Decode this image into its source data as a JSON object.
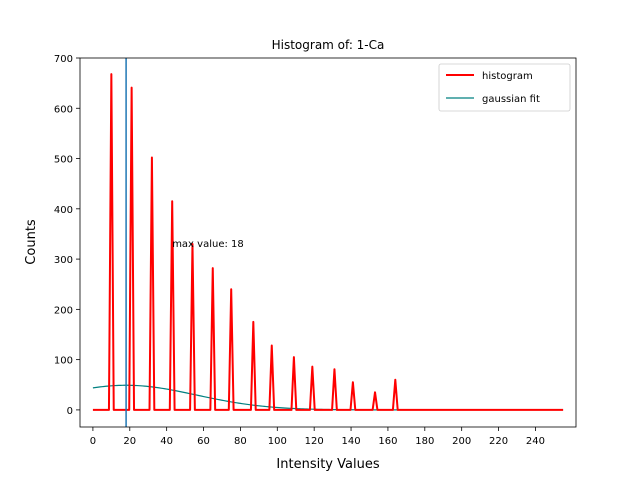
{
  "chart_data": {
    "type": "line",
    "title": "Histogram of: 1-Ca",
    "xlabel": "Intensity Values",
    "ylabel": "Counts",
    "xlim": [
      -7,
      262
    ],
    "ylim": [
      -34,
      700
    ],
    "xticks": [
      0,
      20,
      40,
      60,
      80,
      100,
      120,
      140,
      160,
      180,
      200,
      220,
      240
    ],
    "yticks": [
      0,
      100,
      200,
      300,
      400,
      500,
      600,
      700
    ],
    "grid": false,
    "legend_position": "top-right",
    "series": [
      {
        "name": "histogram",
        "color": "#ff0000",
        "style": "spikes",
        "peaks": [
          {
            "x": 10,
            "y": 668
          },
          {
            "x": 21,
            "y": 641
          },
          {
            "x": 32,
            "y": 502
          },
          {
            "x": 43,
            "y": 415
          },
          {
            "x": 54,
            "y": 330
          },
          {
            "x": 65,
            "y": 282
          },
          {
            "x": 75,
            "y": 240
          },
          {
            "x": 87,
            "y": 175
          },
          {
            "x": 97,
            "y": 128
          },
          {
            "x": 109,
            "y": 105
          },
          {
            "x": 119,
            "y": 86
          },
          {
            "x": 131,
            "y": 81
          },
          {
            "x": 141,
            "y": 55
          },
          {
            "x": 153,
            "y": 35
          },
          {
            "x": 164,
            "y": 60
          }
        ],
        "x_range": [
          0,
          255
        ]
      },
      {
        "name": "gaussian fit",
        "color": "#008080",
        "style": "curve",
        "amplitude": 49,
        "mean": 18,
        "sigma": 38,
        "x_range": [
          0,
          255
        ]
      }
    ],
    "vline": {
      "x": 18,
      "color": "#1f77b4"
    },
    "annotation": {
      "text": "max value: 18",
      "x": 43,
      "y": 330
    }
  }
}
